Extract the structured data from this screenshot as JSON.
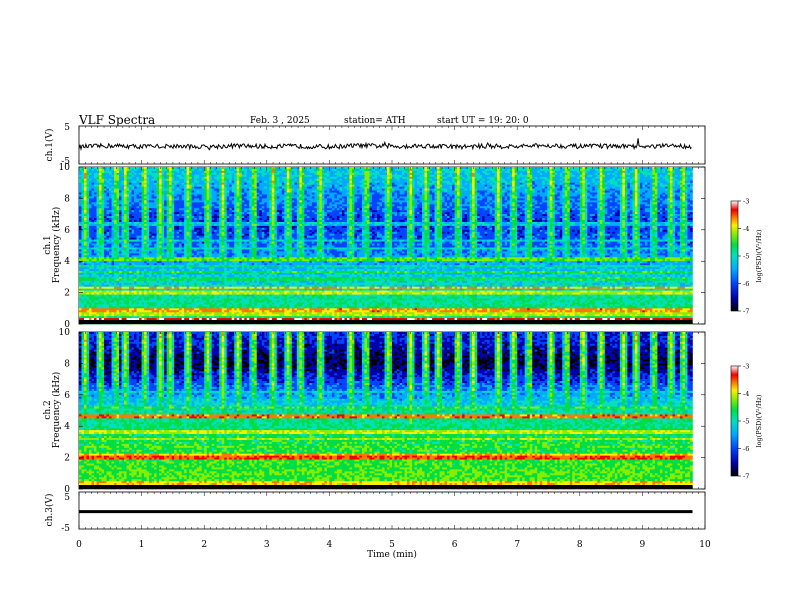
{
  "header": {
    "title": "VLF  Spectra",
    "date": "Feb. 3  , 2025",
    "station": "station= ATH",
    "start": "start  UT  =    19: 20: 0"
  },
  "chart_data": [
    {
      "type": "line",
      "panel": "ch1-waveform",
      "ylabel": "ch.1(V)",
      "ylim": [
        -5,
        5
      ],
      "yticks": [
        "5",
        "-5"
      ],
      "xlim": [
        0,
        10
      ],
      "series_color": "#000000",
      "x": [
        0,
        0.5,
        1,
        1.5,
        2,
        2.5,
        3,
        3.5,
        4,
        4.5,
        5,
        5.5,
        6,
        6.5,
        7,
        7.5,
        8,
        8.5,
        9,
        9.5,
        9.8
      ],
      "y": [
        -0.5,
        -0.2,
        -0.4,
        -0.3,
        -0.5,
        -0.2,
        -0.4,
        -0.3,
        -0.5,
        -0.1,
        -0.4,
        -0.2,
        -0.5,
        -0.3,
        -0.4,
        -0.1,
        -0.4,
        -0.3,
        -0.5,
        -0.2,
        -0.4
      ]
    },
    {
      "type": "heatmap",
      "panel": "ch1-spectrogram",
      "ylabel_line1": "ch.1",
      "ylabel_line2": "Frequency  (kHz)",
      "ylim": [
        0,
        10
      ],
      "yticks": [
        "0",
        "2",
        "4",
        "6",
        "8",
        "10"
      ],
      "xlim": [
        0,
        10
      ],
      "data_end_min": 9.8,
      "colorbar": {
        "label": "log(PSD)(V²/Hz)",
        "range": [
          -7,
          -3
        ],
        "ticks": [
          "-3",
          "-4",
          "-5",
          "-6",
          "-7"
        ]
      },
      "colorscale": [
        "#000000",
        "#0000aa",
        "#0044ff",
        "#00aaff",
        "#00e0c0",
        "#00dd44",
        "#88ee00",
        "#ffee00",
        "#ff7700",
        "#ee0000",
        "#ffffff"
      ],
      "bands_khz": [
        {
          "f": 0.3,
          "v": 0.88
        },
        {
          "f": 0.6,
          "v": 0.62
        },
        {
          "f": 0.85,
          "v": 0.75
        },
        {
          "f": 1.2,
          "v": 0.42
        },
        {
          "f": 1.6,
          "v": 0.45
        },
        {
          "f": 2.0,
          "v": 0.62
        },
        {
          "f": 2.3,
          "v": 0.72
        },
        {
          "f": 2.9,
          "v": 0.48
        },
        {
          "f": 3.3,
          "v": 0.5
        },
        {
          "f": 3.7,
          "v": 0.42
        },
        {
          "f": 4.1,
          "v": 0.55
        },
        {
          "f": 4.8,
          "v": 0.4
        },
        {
          "f": 5.3,
          "v": 0.38
        },
        {
          "f": 6.4,
          "v": 0.35
        }
      ],
      "background_by_freq": [
        [
          0,
          0.5
        ],
        [
          3,
          0.38
        ],
        [
          5,
          0.25
        ],
        [
          6.5,
          0.2
        ],
        [
          8,
          0.28
        ],
        [
          10,
          0.38
        ]
      ],
      "sferic_times_min": [
        0.1,
        0.35,
        0.6,
        0.75,
        1.05,
        1.3,
        1.45,
        1.75,
        2.05,
        2.3,
        2.55,
        2.8,
        3.1,
        3.35,
        3.55,
        3.85,
        4.35,
        4.6,
        4.95,
        5.3,
        5.55,
        5.75,
        6.05,
        6.3,
        6.7,
        6.95,
        7.2,
        7.55,
        7.8,
        8.05,
        8.35,
        8.7,
        8.9,
        9.2,
        9.45,
        9.65
      ]
    },
    {
      "type": "heatmap",
      "panel": "ch2-spectrogram",
      "ylabel_line1": "ch.2",
      "ylabel_line2": "Frequency  (kHz)",
      "ylim": [
        0,
        10
      ],
      "yticks": [
        "0",
        "2",
        "4",
        "6",
        "8",
        "10"
      ],
      "xlim": [
        0,
        10
      ],
      "data_end_min": 9.8,
      "colorbar": {
        "label": "log(PSD)(V²/Hz)",
        "range": [
          -7,
          -3
        ],
        "ticks": [
          "-3",
          "-4",
          "-5",
          "-6",
          "-7"
        ]
      },
      "colorscale": [
        "#000000",
        "#0000aa",
        "#0044ff",
        "#00aaff",
        "#00e0c0",
        "#00dd44",
        "#88ee00",
        "#ffee00",
        "#ff7700",
        "#ee0000",
        "#ffffff"
      ],
      "bands_khz": [
        {
          "f": 0.4,
          "v": 0.7
        },
        {
          "f": 1.0,
          "v": 0.55
        },
        {
          "f": 1.5,
          "v": 0.5
        },
        {
          "f": 2.0,
          "v": 0.82
        },
        {
          "f": 2.2,
          "v": 0.72
        },
        {
          "f": 2.7,
          "v": 0.55
        },
        {
          "f": 3.2,
          "v": 0.6
        },
        {
          "f": 3.6,
          "v": 0.62
        },
        {
          "f": 4.6,
          "v": 0.78
        },
        {
          "f": 5.2,
          "v": 0.52
        },
        {
          "f": 6.2,
          "v": 0.38
        }
      ],
      "background_by_freq": [
        [
          0,
          0.55
        ],
        [
          3,
          0.5
        ],
        [
          5,
          0.42
        ],
        [
          6.5,
          0.25
        ],
        [
          8,
          0.08
        ],
        [
          10,
          0.2
        ]
      ],
      "sferic_times_min": [
        0.1,
        0.35,
        0.6,
        0.75,
        1.05,
        1.3,
        1.45,
        1.75,
        2.05,
        2.3,
        2.55,
        2.8,
        3.1,
        3.35,
        3.55,
        3.85,
        4.35,
        4.6,
        4.95,
        5.3,
        5.55,
        5.75,
        6.05,
        6.3,
        6.7,
        6.95,
        7.2,
        7.55,
        7.8,
        8.05,
        8.35,
        8.7,
        8.9,
        9.2,
        9.45,
        9.65
      ]
    },
    {
      "type": "line",
      "panel": "ch3-waveform",
      "ylabel": "ch.3(V)",
      "ylim": [
        -5,
        5
      ],
      "yticks": [
        "5",
        "-5"
      ],
      "xlim": [
        0,
        10
      ],
      "xlabel": "Time  (min)",
      "xticks": [
        "0",
        "1",
        "2",
        "3",
        "4",
        "5",
        "6",
        "7",
        "8",
        "9",
        "10"
      ],
      "series_color": "#000000",
      "x": [
        0,
        9.8
      ],
      "y": [
        -0.3,
        -0.3
      ]
    }
  ]
}
